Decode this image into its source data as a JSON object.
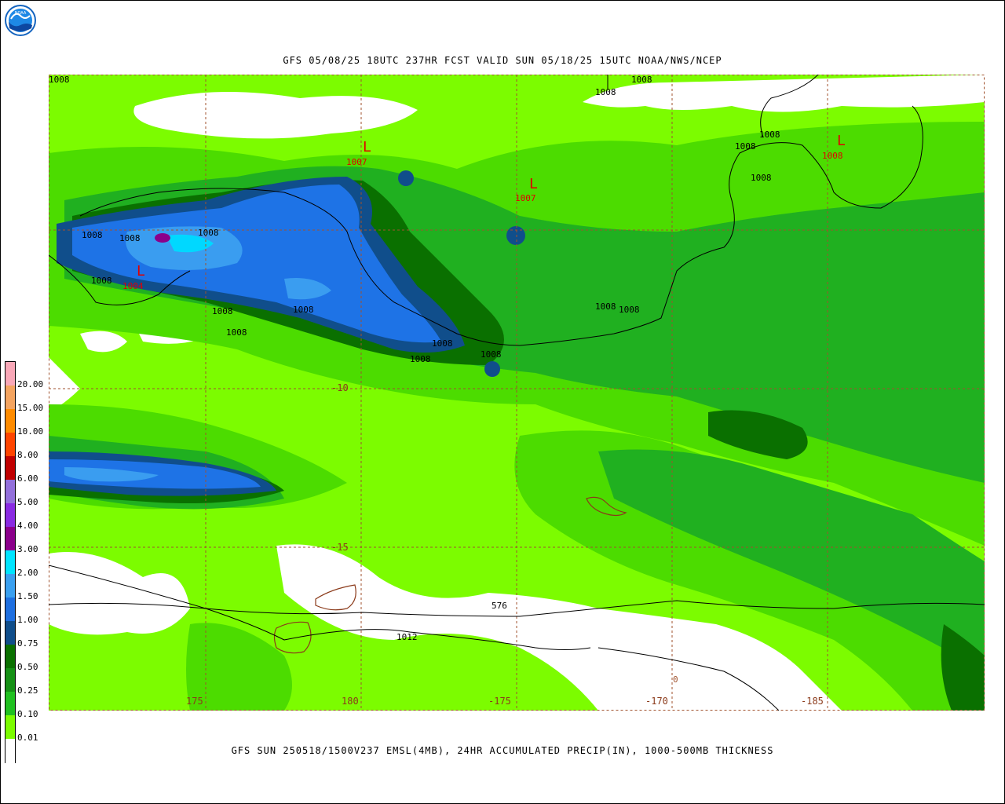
{
  "header": {
    "title": "GFS 05/08/25 18UTC 237HR FCST VALID SUN 05/18/25 15UTC NOAA/NWS/NCEP",
    "logo_text": "NOAA"
  },
  "footer": {
    "title": "GFS SUN 250518/1500V237 EMSL(4MB), 24HR ACCUMULATED PRECIP(IN), 1000-500MB THICKNESS"
  },
  "map": {
    "lon_labels": [
      "175",
      "180",
      "-175",
      "-170",
      "-185"
    ],
    "lat_labels": [
      "-10",
      "-15"
    ],
    "isobar_labels": [
      "1008",
      "1008",
      "1008",
      "1008",
      "1008",
      "1008",
      "1008",
      "1008",
      "1008",
      "1008",
      "1008",
      "1008",
      "1008",
      "1008",
      "1008",
      "1008",
      "1008",
      "1008",
      "1012"
    ],
    "thickness_label": "576",
    "edge_zero": "0",
    "lows": [
      {
        "symbol": "L",
        "pressure": "1007"
      },
      {
        "symbol": "L",
        "pressure": "1007"
      },
      {
        "symbol": "L",
        "pressure": "1008"
      },
      {
        "symbol": "L",
        "pressure": "1004"
      }
    ],
    "colors": {
      "none": "#ffffff",
      "p001": "#7cfc00",
      "p010": "#4cdc00",
      "p025": "#20b020",
      "p050": "#159015",
      "p075": "#0a7000",
      "p100": "#104e8b",
      "p150": "#1e73e6",
      "p200": "#3a9df0",
      "p300": "#00d8ff",
      "low": "#e00000",
      "coast": "#8b3a1a",
      "grid": "#a0522d"
    }
  },
  "colorbar": {
    "labels": [
      "20.00",
      "15.00",
      "10.00",
      "8.00",
      "6.00",
      "5.00",
      "4.00",
      "3.00",
      "2.00",
      "1.50",
      "1.00",
      "0.75",
      "0.50",
      "0.25",
      "0.10",
      "0.01"
    ],
    "colors": [
      "#f9a8b8",
      "#f4a460",
      "#ff8c00",
      "#ff4500",
      "#c00000",
      "#9370db",
      "#8a2be2",
      "#8b008b",
      "#00e5ff",
      "#3aa0f0",
      "#1e6fe0",
      "#104e8b",
      "#0a7000",
      "#159015",
      "#20c020",
      "#7cfc00",
      "#ffffff"
    ]
  }
}
